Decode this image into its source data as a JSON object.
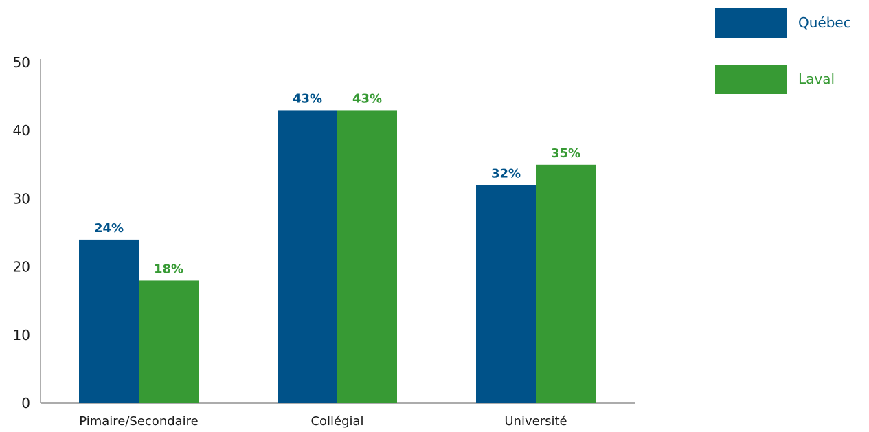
{
  "chart_data": {
    "type": "bar",
    "categories": [
      "Pimaire/Secondaire",
      "Collégial",
      "Université"
    ],
    "series": [
      {
        "name": "Québec",
        "values": [
          24,
          43,
          32
        ],
        "labels": [
          "24%",
          "43%",
          "32%"
        ],
        "color": "#005289"
      },
      {
        "name": "Laval",
        "values": [
          18,
          43,
          35
        ],
        "labels": [
          "18%",
          "43%",
          "35%"
        ],
        "color": "#379A34"
      }
    ],
    "yticks": [
      "0",
      "10",
      "20",
      "30",
      "40",
      "50"
    ],
    "ylim": [
      0,
      50
    ],
    "grid": false,
    "legend": "top-right"
  }
}
